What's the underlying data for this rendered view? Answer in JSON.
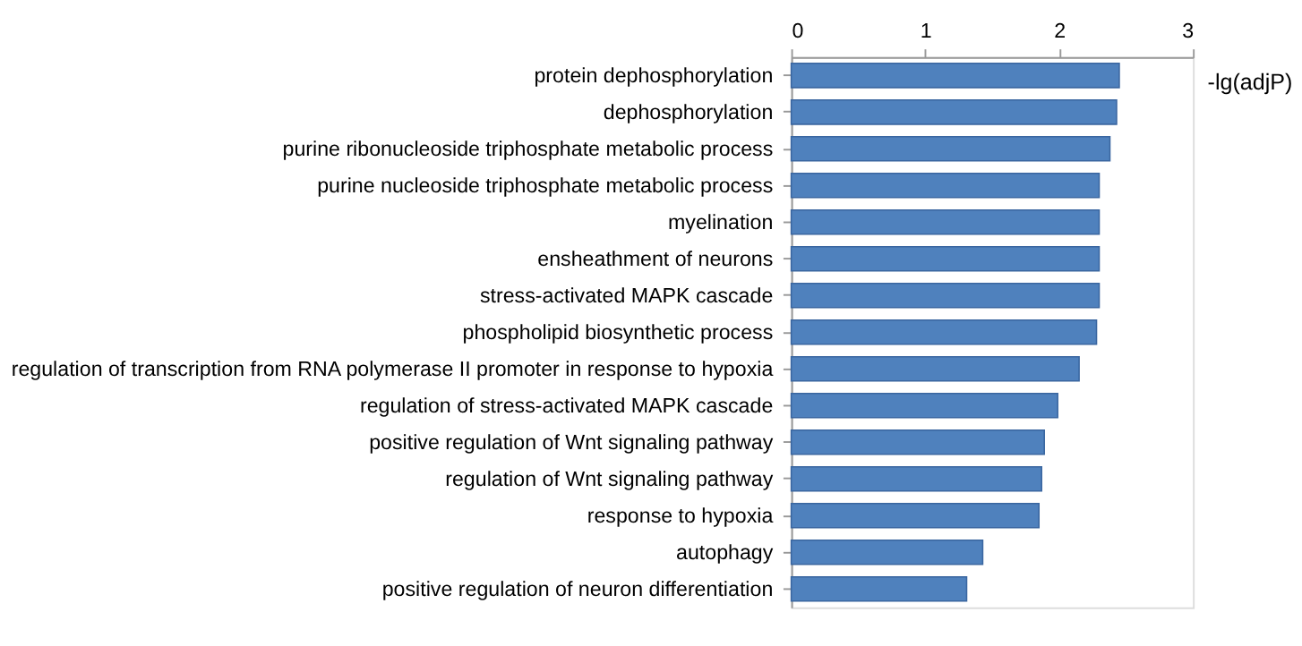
{
  "chart_data": {
    "type": "bar",
    "orientation": "horizontal",
    "xlabel": "-lg(adjP)",
    "categories": [
      "protein dephosphorylation",
      "dephosphorylation",
      "purine ribonucleoside triphosphate metabolic process",
      "purine nucleoside triphosphate metabolic process",
      "myelination",
      "ensheathment of neurons",
      "stress-activated MAPK cascade",
      "phospholipid biosynthetic process",
      "regulation of transcription from RNA polymerase II promoter in response to hypoxia",
      "regulation of stress-activated MAPK cascade",
      "positive regulation of Wnt signaling pathway",
      "regulation of Wnt signaling pathway",
      "response to hypoxia",
      "autophagy",
      "positive regulation of neuron differentiation"
    ],
    "values": [
      2.45,
      2.43,
      2.38,
      2.3,
      2.3,
      2.3,
      2.3,
      2.28,
      2.15,
      1.99,
      1.89,
      1.87,
      1.85,
      1.43,
      1.31
    ],
    "color": "#4f81bd",
    "xlim": [
      0,
      3
    ],
    "xticks": [
      0,
      1,
      2,
      3
    ],
    "grid": false
  }
}
